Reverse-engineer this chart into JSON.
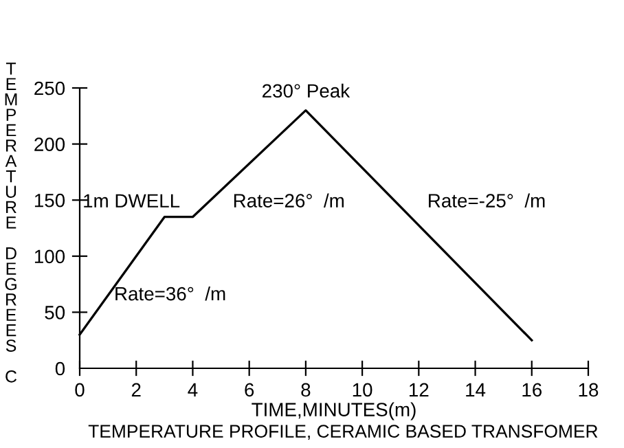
{
  "chart_data": {
    "type": "line",
    "x": [
      0,
      3,
      4,
      8,
      16
    ],
    "series": [
      {
        "color": "#000000",
        "values": [
          30,
          135,
          135,
          230,
          25
        ]
      }
    ],
    "xlim": [
      0,
      18
    ],
    "xticks": [
      0,
      2,
      4,
      6,
      8,
      10,
      12,
      14,
      16,
      18
    ],
    "ylim": [
      0,
      250
    ],
    "yticks": [
      0,
      50,
      100,
      150,
      200,
      250
    ],
    "xlabel": "TIME,MINUTES(m)",
    "ylabel": "TEMPERATURE DEGREES C",
    "grid": false,
    "legend": false,
    "annotations": [
      {
        "text": "230° Peak",
        "x": 8,
        "y": 230
      },
      {
        "text": "1m DWELL",
        "x": 3,
        "y": 135
      },
      {
        "text": "Rate=36°  /m",
        "x": 1.5,
        "y": 84
      },
      {
        "text": "Rate=26°  /m",
        "x": 6,
        "y": 183
      },
      {
        "text": "Rate=-25°  /m",
        "x": 12,
        "y": 131
      },
      "TEMPERATURE PROFILE, CERAMIC BASED TRANSFOMER"
    ]
  }
}
